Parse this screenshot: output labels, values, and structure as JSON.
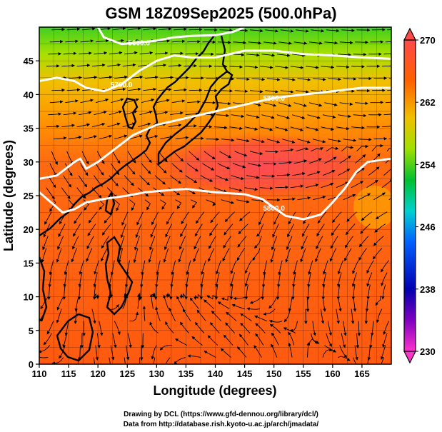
{
  "title": "GSM 18Z09Sep2025 (500.0hPa)",
  "x_axis": {
    "label": "Longitude (degrees)",
    "range": [
      110,
      170
    ],
    "ticks": [
      "110",
      "115",
      "120",
      "125",
      "130",
      "135",
      "140",
      "145",
      "150",
      "155",
      "160",
      "165"
    ]
  },
  "y_axis": {
    "label": "Latitude  (degrees)",
    "range": [
      0,
      50
    ],
    "ticks": [
      "0",
      "5",
      "10",
      "15",
      "20",
      "25",
      "30",
      "35",
      "40",
      "45"
    ]
  },
  "colorbar": {
    "range": [
      230,
      270
    ],
    "labels": [
      "230",
      "238",
      "246",
      "254",
      "262",
      "270"
    ]
  },
  "contours": [
    {
      "label": "5800.0",
      "points": [
        [
          110,
          25.5
        ],
        [
          112,
          24
        ],
        [
          114,
          22.5
        ],
        [
          116,
          23
        ],
        [
          118,
          24
        ],
        [
          121,
          24.5
        ],
        [
          125,
          25
        ],
        [
          128,
          25.5
        ],
        [
          132,
          25.8
        ],
        [
          135,
          26
        ],
        [
          140,
          25.5
        ],
        [
          145,
          25.2
        ],
        [
          148,
          24.5
        ],
        [
          150,
          23.2
        ],
        [
          152,
          22
        ],
        [
          155,
          21.5
        ],
        [
          158,
          22.2
        ],
        [
          160,
          24
        ],
        [
          162,
          26
        ],
        [
          164,
          28.5
        ],
        [
          166,
          30
        ],
        [
          170,
          30.5
        ]
      ]
    },
    {
      "label": "5800.0",
      "points": [
        [
          110,
          27.5
        ],
        [
          113,
          28
        ],
        [
          116,
          30
        ],
        [
          117,
          30.5
        ],
        [
          118,
          29
        ],
        [
          120,
          30
        ],
        [
          123,
          32
        ],
        [
          126,
          34
        ],
        [
          130,
          35.5
        ],
        [
          135,
          36.5
        ],
        [
          140,
          37.5
        ],
        [
          145,
          38.5
        ],
        [
          150,
          39.5
        ],
        [
          155,
          40
        ],
        [
          160,
          40.5
        ],
        [
          165,
          41
        ],
        [
          170,
          41
        ]
      ]
    },
    {
      "label": "5700.0",
      "points": [
        [
          110,
          42
        ],
        [
          113,
          42.5
        ],
        [
          116,
          42
        ],
        [
          118,
          41
        ],
        [
          121,
          40.5
        ],
        [
          124,
          41.5
        ],
        [
          127,
          43.5
        ],
        [
          130,
          45
        ],
        [
          133,
          45.8
        ],
        [
          136,
          45.5
        ],
        [
          140,
          45.5
        ],
        [
          145,
          46.5
        ],
        [
          150,
          46.5
        ],
        [
          155,
          46
        ],
        [
          160,
          45.8
        ],
        [
          165,
          45.5
        ],
        [
          170,
          45.3
        ]
      ]
    },
    {
      "label": "5600.0",
      "points": [
        [
          120,
          50
        ],
        [
          121,
          48.5
        ],
        [
          124,
          47.5
        ],
        [
          127,
          47.7
        ],
        [
          130,
          48
        ],
        [
          133,
          48.5
        ],
        [
          136,
          48.7
        ],
        [
          140,
          48.8
        ],
        [
          143,
          49.3
        ],
        [
          145,
          50
        ]
      ]
    }
  ],
  "credits": [
    "Drawing by DCL (https://www.gfd-dennou.org/library/dcl/)",
    "Data from http://database.rish.kyoto-u.ac.jp/arch/jmadata/"
  ],
  "colors": {
    "hot": "#ff4a4a",
    "warm": "#ff7a00",
    "mid": "#f0c000",
    "cool": "#00c030",
    "contour": "#ffffff",
    "coast": "#000000"
  }
}
